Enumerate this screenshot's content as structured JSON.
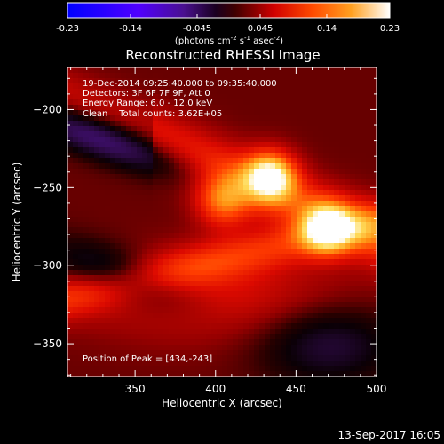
{
  "chart_data": {
    "type": "heatmap",
    "title": "Reconstructed RHESSI Image",
    "xlabel": "Heliocentric X (arcsec)",
    "ylabel": "Heliocentric Y (arcsec)",
    "xlim": [
      308,
      500
    ],
    "ylim": [
      -371,
      -173
    ],
    "x_ticks": [
      350,
      400,
      450,
      500
    ],
    "y_ticks": [
      -200,
      -250,
      -300,
      -350
    ],
    "colorbar": {
      "min": -0.23,
      "max": 0.23,
      "ticks": [
        "-0.23",
        "-0.14",
        "-0.045",
        "0.045",
        "0.14",
        "0.23"
      ],
      "tick_values": [
        -0.23,
        -0.14,
        -0.045,
        0.045,
        0.14,
        0.23
      ],
      "unit_text": "(photons cm",
      "unit_sup1": "-2",
      "unit_mid1": " s",
      "unit_sup2": "-1",
      "unit_mid2": " asec",
      "unit_sup3": "-2",
      "unit_end": ")"
    },
    "annotations": [
      "19-Dec-2014 09:25:40.000 to 09:35:40.000",
      "Detectors: 3F 6F 7F 9F, Att 0",
      "Energy Range: 6.0 - 12.0 keV",
      "Clean    Total counts: 3.62E+05"
    ],
    "peak_label": "Position of Peak = [434,-243]",
    "peak": [
      434,
      -243
    ],
    "sources": [
      {
        "x": 434,
        "y": -243,
        "value": 0.23
      },
      {
        "x": 469,
        "y": -276,
        "value": 0.2
      },
      {
        "x": 405,
        "y": -258,
        "value": 0.16
      }
    ],
    "colormap": [
      "#0000ff",
      "#3a00ff",
      "#5b1aa8",
      "#2a0a50",
      "#000000",
      "#3a0000",
      "#a00000",
      "#ff2000",
      "#ff8000",
      "#ffd040",
      "#ffffff"
    ]
  },
  "footer_date": "13-Sep-2017 16:05"
}
